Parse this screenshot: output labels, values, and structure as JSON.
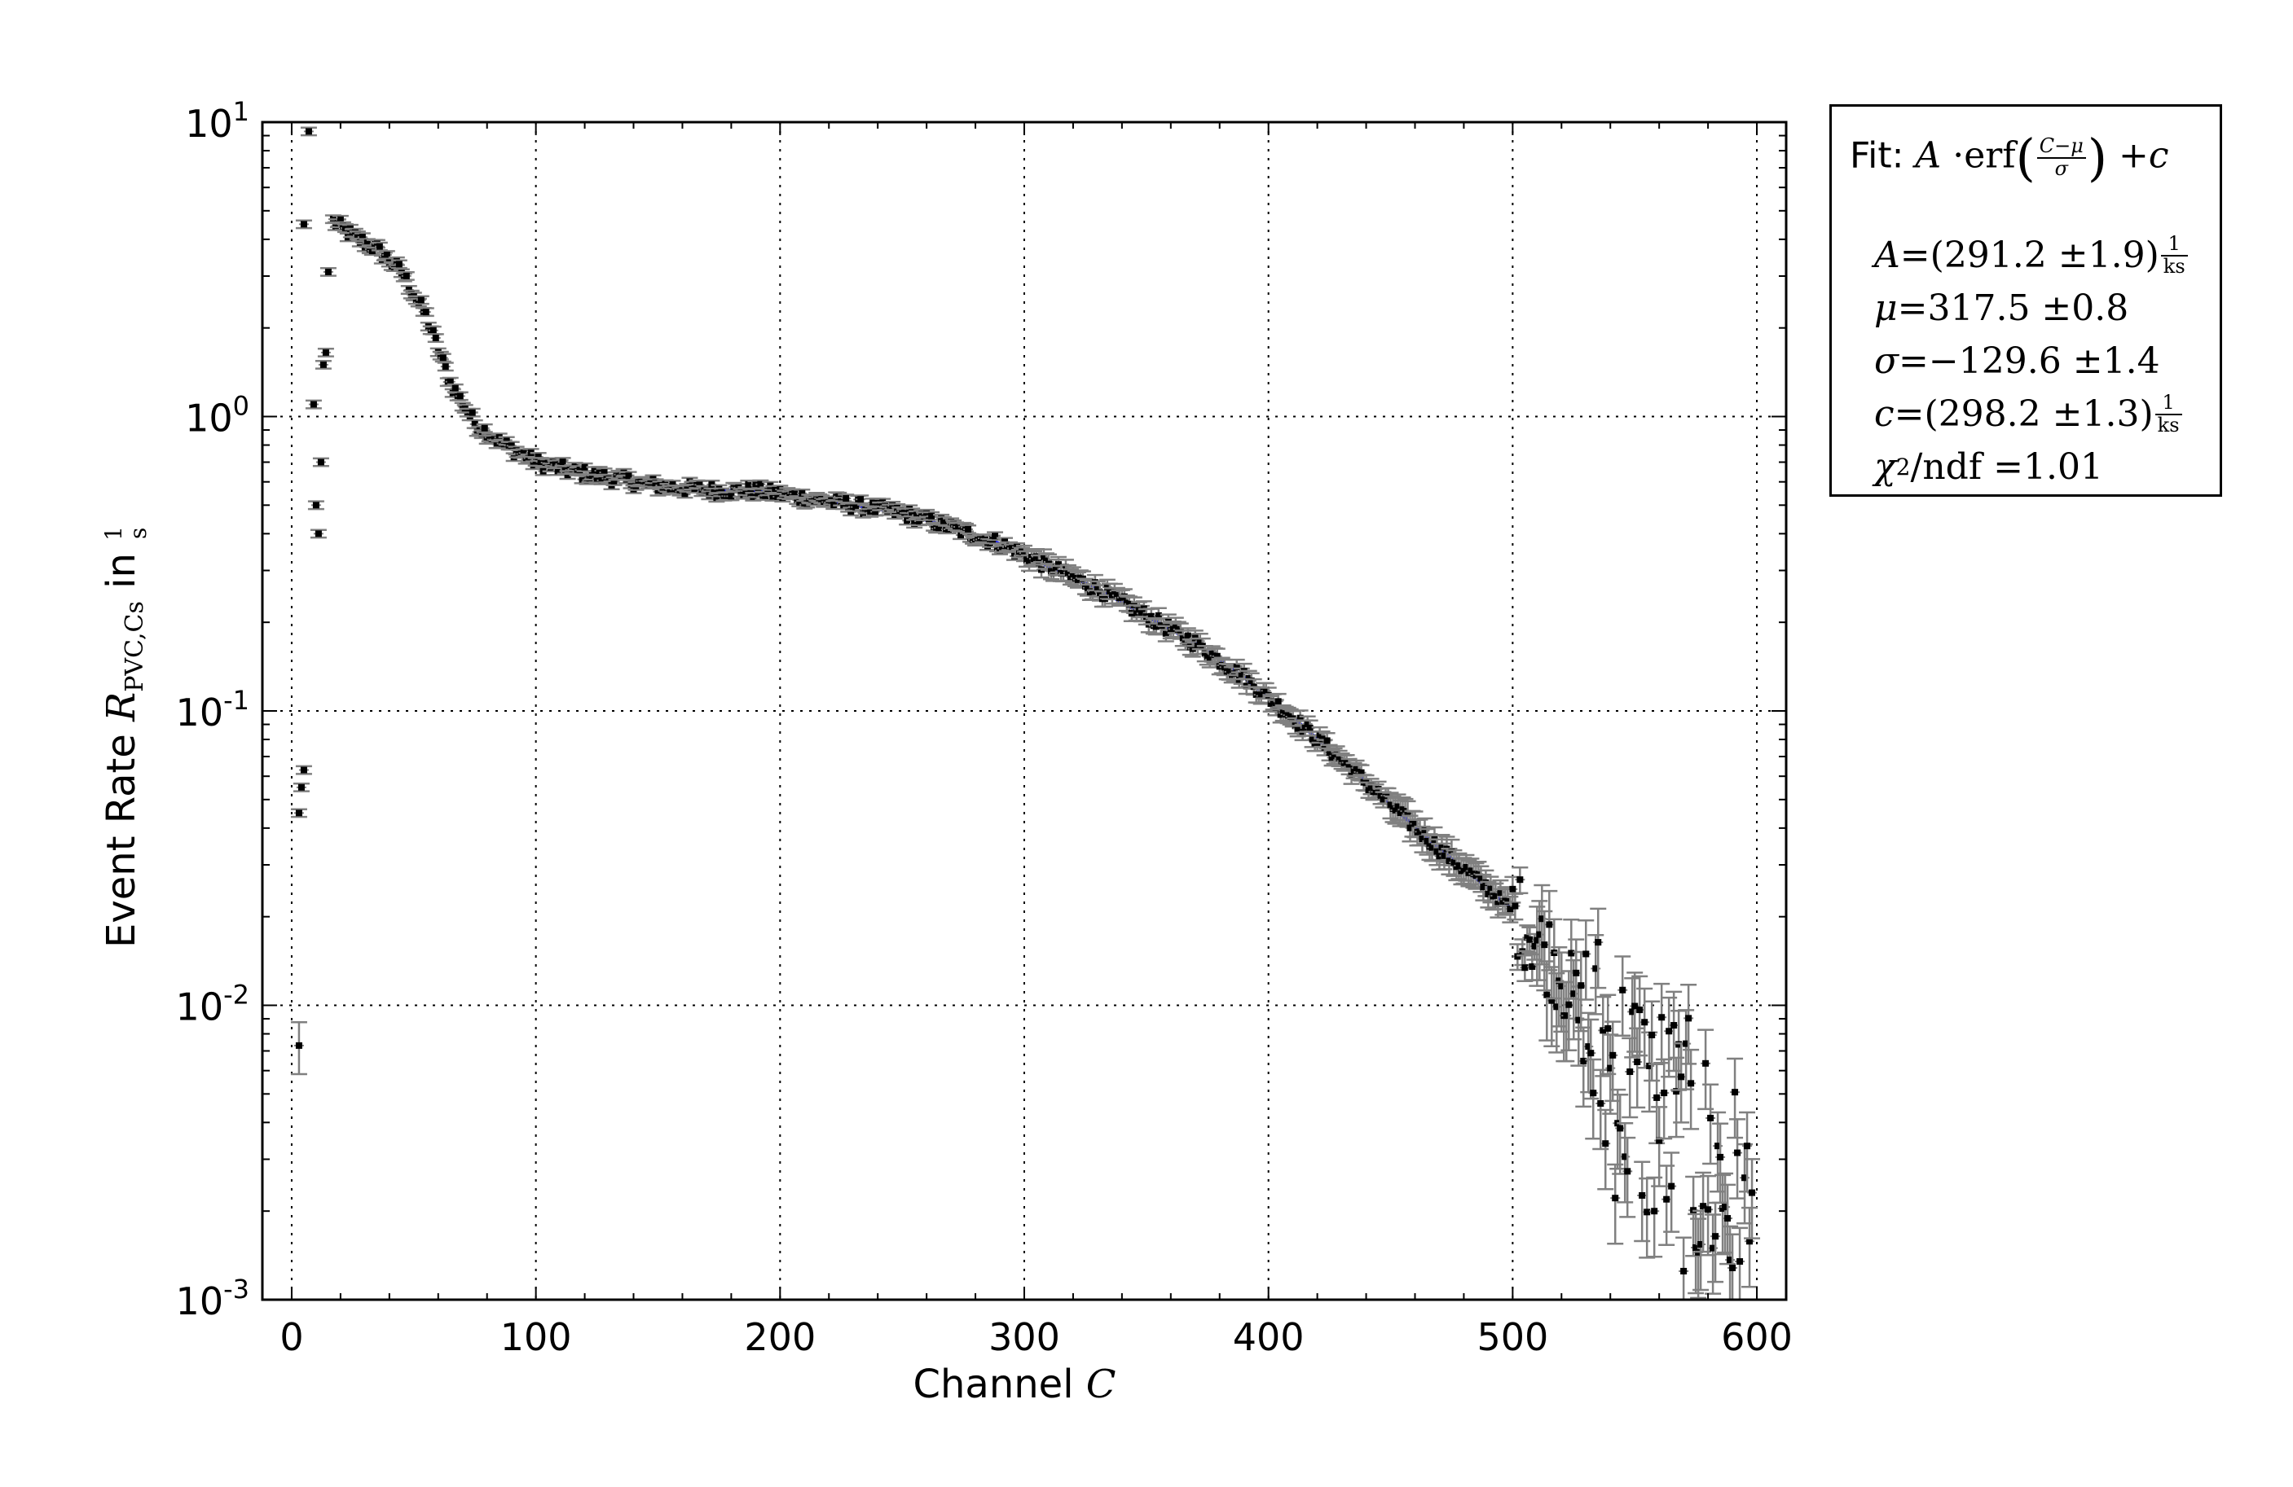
{
  "chart_data": {
    "type": "scatter",
    "title": "",
    "xlabel_text": "Channel",
    "xlabel_symbol": "C",
    "ylabel_text": "Event Rate",
    "ylabel_symbol": "R",
    "ylabel_subscript": "PVC,Cs",
    "ylabel_in": "in",
    "ylabel_unit_num": "1",
    "ylabel_unit_den": "s",
    "xlim": [
      -12,
      612
    ],
    "ylim": [
      0.001,
      10
    ],
    "yscale": "log",
    "grid": true,
    "x_ticks": [
      "0",
      "100",
      "200",
      "300",
      "400",
      "500",
      "600"
    ],
    "y_ticks": [
      {
        "base": "10",
        "exp": "1"
      },
      {
        "base": "10",
        "exp": "0"
      },
      {
        "base": "10",
        "exp": "-1"
      },
      {
        "base": "10",
        "exp": "-2"
      },
      {
        "base": "10",
        "exp": "-3"
      }
    ],
    "series": [
      {
        "kind": "data",
        "color": "#000000",
        "errorbar_color": "#808080",
        "low_channel_points": [
          {
            "x": 3,
            "y": 0.0073
          },
          {
            "x": 3,
            "y": 0.045
          },
          {
            "x": 4,
            "y": 0.055
          },
          {
            "x": 5,
            "y": 0.063
          },
          {
            "x": 5,
            "y": 4.5
          },
          {
            "x": 7,
            "y": 9.3
          },
          {
            "x": 9,
            "y": 1.1
          },
          {
            "x": 10,
            "y": 0.5
          },
          {
            "x": 11,
            "y": 0.4
          },
          {
            "x": 12,
            "y": 0.7
          },
          {
            "x": 13,
            "y": 1.5
          },
          {
            "x": 14,
            "y": 1.65
          },
          {
            "x": 15,
            "y": 3.1
          }
        ],
        "curve": [
          {
            "x": 17,
            "y": 4.6
          },
          {
            "x": 25,
            "y": 4.1
          },
          {
            "x": 35,
            "y": 3.7
          },
          {
            "x": 45,
            "y": 3.1
          },
          {
            "x": 55,
            "y": 2.2
          },
          {
            "x": 65,
            "y": 1.3
          },
          {
            "x": 75,
            "y": 0.95
          },
          {
            "x": 85,
            "y": 0.82
          },
          {
            "x": 100,
            "y": 0.7
          },
          {
            "x": 115,
            "y": 0.65
          },
          {
            "x": 130,
            "y": 0.62
          },
          {
            "x": 150,
            "y": 0.58
          },
          {
            "x": 175,
            "y": 0.56
          },
          {
            "x": 190,
            "y": 0.56
          },
          {
            "x": 210,
            "y": 0.53
          },
          {
            "x": 230,
            "y": 0.5
          },
          {
            "x": 250,
            "y": 0.47
          },
          {
            "x": 270,
            "y": 0.42
          },
          {
            "x": 290,
            "y": 0.37
          },
          {
            "x": 310,
            "y": 0.31
          },
          {
            "x": 330,
            "y": 0.26
          },
          {
            "x": 350,
            "y": 0.21
          },
          {
            "x": 370,
            "y": 0.17
          },
          {
            "x": 390,
            "y": 0.13
          },
          {
            "x": 410,
            "y": 0.095
          },
          {
            "x": 430,
            "y": 0.068
          },
          {
            "x": 450,
            "y": 0.048
          },
          {
            "x": 470,
            "y": 0.034
          },
          {
            "x": 490,
            "y": 0.025
          },
          {
            "x": 500,
            "y": 0.021
          },
          {
            "x": 510,
            "y": 0.017
          },
          {
            "x": 520,
            "y": 0.013
          },
          {
            "x": 528,
            "y": 0.009
          },
          {
            "x": 535,
            "y": 0.007
          },
          {
            "x": 545,
            "y": 0.0055
          },
          {
            "x": 555,
            "y": 0.0045
          },
          {
            "x": 565,
            "y": 0.0038
          },
          {
            "x": 575,
            "y": 0.003
          },
          {
            "x": 585,
            "y": 0.0025
          },
          {
            "x": 595,
            "y": 0.0018
          },
          {
            "x": 600,
            "y": 0.0013
          }
        ]
      },
      {
        "kind": "fit",
        "color": "#0000ff",
        "x_range": [
          150,
          500
        ]
      }
    ],
    "fit": {
      "label": "Fit:",
      "A_val": 291.2,
      "A_err": 1.9,
      "mu_val": 317.5,
      "mu_err": 0.8,
      "sigma_val": -129.6,
      "sigma_err": 1.4,
      "c_val": 298.2,
      "c_err": 1.3,
      "unit_num": "1",
      "unit_den": "ks",
      "chi2_ndf": 1.01,
      "chi2_label": "/ndf"
    }
  },
  "fit_box": {
    "label": "Fit:",
    "formula": {
      "A": "A",
      "dot": "·",
      "erf": "erf",
      "frac_num": "C−μ",
      "frac_den": "σ",
      "plus": "+",
      "c": "c"
    },
    "lines": [
      {
        "sym": "A",
        "text": "=(291.2 ±1.9)",
        "unit_num": "1",
        "unit_den": "ks"
      },
      {
        "sym": "μ",
        "text": "=317.5 ±0.8",
        "unit_num": "",
        "unit_den": ""
      },
      {
        "sym": "σ",
        "text": "=−129.6 ±1.4",
        "unit_num": "",
        "unit_den": ""
      },
      {
        "sym": "c",
        "text": "=(298.2 ±1.3)",
        "unit_num": "1",
        "unit_den": "ks"
      }
    ],
    "chi2": {
      "sym": "χ",
      "sup": "2",
      "text": " /ndf =1.01"
    }
  }
}
